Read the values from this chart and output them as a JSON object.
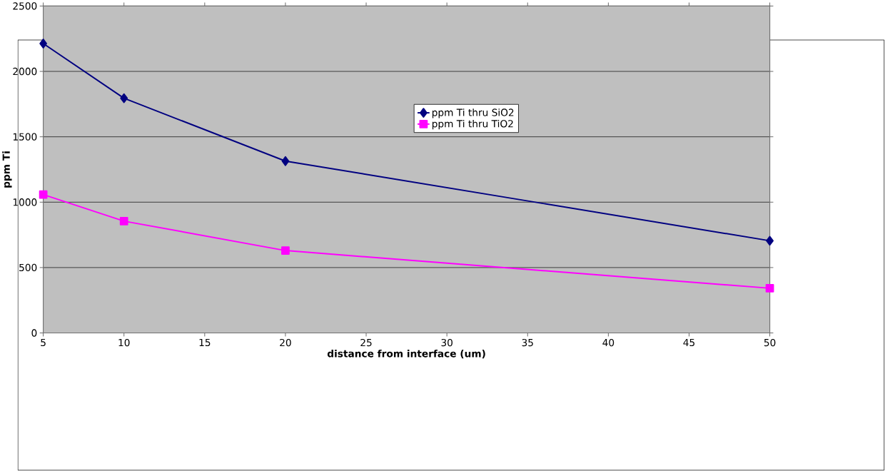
{
  "chart_data": {
    "type": "line",
    "xlabel": "distance from interface (um)",
    "ylabel": "ppm Ti",
    "x": [
      5,
      10,
      20,
      50
    ],
    "series": [
      {
        "name": "ppm Ti thru SiO2",
        "color": "#000080",
        "marker": "diamond",
        "values": [
          2213,
          1795,
          1314,
          705
        ]
      },
      {
        "name": "ppm Ti thru TiO2",
        "color": "#ff00ff",
        "marker": "square",
        "values": [
          1058,
          855,
          630,
          342
        ]
      }
    ],
    "xlim": [
      5,
      50
    ],
    "xticks": [
      5,
      10,
      15,
      20,
      25,
      30,
      35,
      40,
      45,
      50
    ],
    "ylim": [
      0,
      2500
    ],
    "yticks": [
      0,
      500,
      1000,
      1500,
      2000,
      2500
    ],
    "grid": "y",
    "legend": "right",
    "line_style": "solid"
  }
}
